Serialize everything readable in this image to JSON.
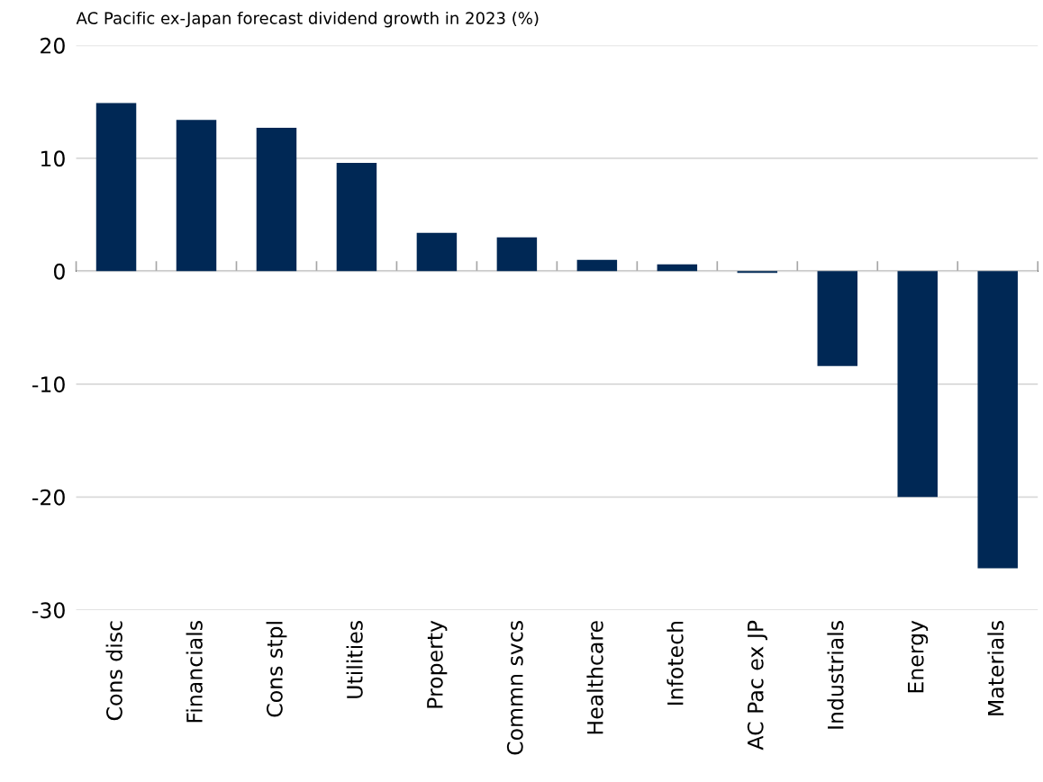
{
  "chart_data": {
    "type": "bar",
    "title": "AC Pacific ex-Japan forecast dividend growth in 2023 (%)",
    "categories": [
      "Cons disc",
      "Financials",
      "Cons stpl",
      "Utilities",
      "Property",
      "Commn svcs",
      "Healthcare",
      "Infotech",
      "AC Pac ex JP",
      "Industrials",
      "Energy",
      "Materials"
    ],
    "values": [
      14.9,
      13.4,
      12.7,
      9.6,
      3.4,
      3.0,
      1.0,
      0.6,
      -0.15,
      -8.4,
      -20.0,
      -26.3
    ],
    "color": "#002855",
    "ylim": [
      -30,
      20
    ],
    "yticks": [
      -30,
      -20,
      -10,
      0,
      10,
      20
    ],
    "grid": "y",
    "legend": false
  }
}
